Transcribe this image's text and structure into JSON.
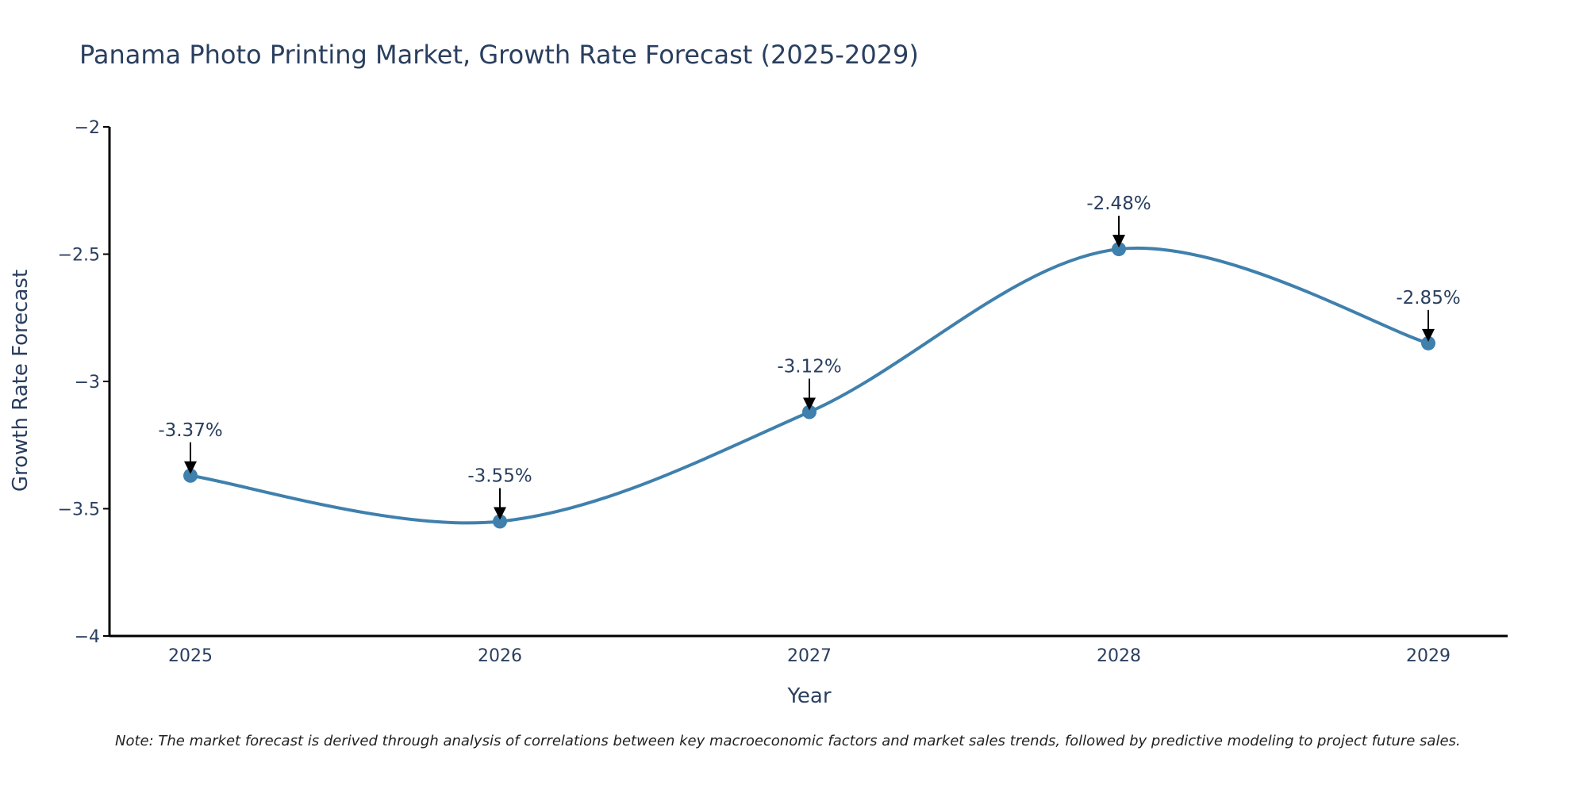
{
  "chart_data": {
    "type": "line",
    "title": "Panama Photo Printing Market, Growth Rate Forecast (2025-2029)",
    "xlabel": "Year",
    "ylabel": "Growth Rate Forecast",
    "categories": [
      "2025",
      "2026",
      "2027",
      "2028",
      "2029"
    ],
    "series": [
      {
        "name": "Growth Rate Forecast",
        "values": [
          -3.37,
          -3.55,
          -3.12,
          -2.48,
          -2.85
        ]
      }
    ],
    "point_labels": [
      "-3.37%",
      "-3.55%",
      "-3.12%",
      "-2.48%",
      "-2.85%"
    ],
    "ylim": [
      -4,
      -2
    ],
    "yticks": [
      -2,
      -2.5,
      -3,
      -3.5,
      -4
    ],
    "ytick_labels": [
      "−2",
      "−2.5",
      "−3",
      "−3.5",
      "−4"
    ],
    "grid": false,
    "line_color": "#3f80ad",
    "note": "Note: The market forecast is derived through analysis of correlations between key macroeconomic factors and market sales trends, followed by predictive modeling to project future sales."
  }
}
